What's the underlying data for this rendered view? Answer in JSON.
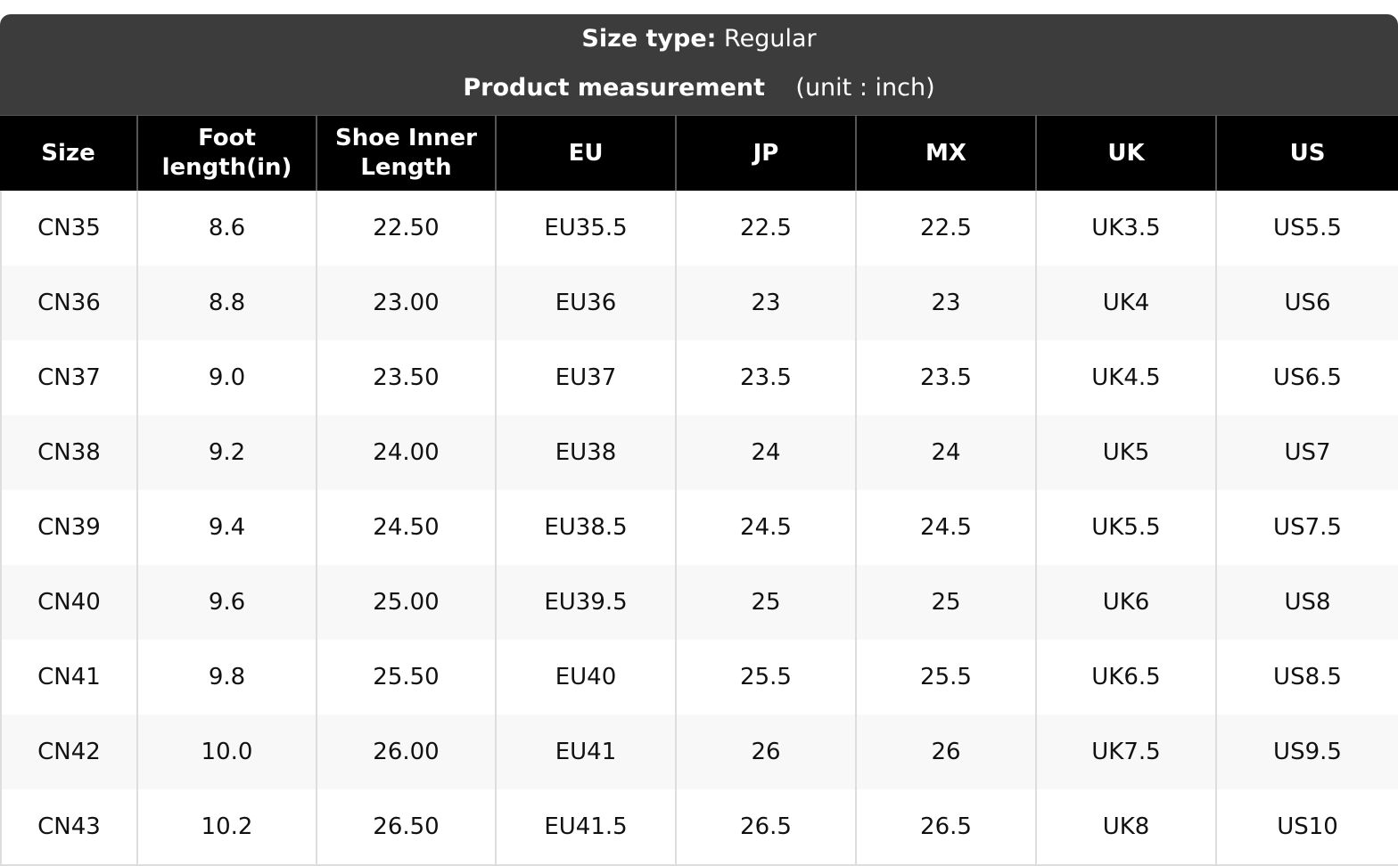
{
  "header": {
    "size_type_label": "Size type:",
    "size_type": "Regular",
    "measurement_label": "Product measurement",
    "unit": "(unit : inch)"
  },
  "table": {
    "columns": [
      "Size",
      "Foot length(in)",
      "Shoe Inner Length",
      "EU",
      "JP",
      "MX",
      "UK",
      "US"
    ],
    "rows": [
      [
        "CN35",
        "8.6",
        "22.50",
        "EU35.5",
        "22.5",
        "22.5",
        "UK3.5",
        "US5.5"
      ],
      [
        "CN36",
        "8.8",
        "23.00",
        "EU36",
        "23",
        "23",
        "UK4",
        "US6"
      ],
      [
        "CN37",
        "9.0",
        "23.50",
        "EU37",
        "23.5",
        "23.5",
        "UK4.5",
        "US6.5"
      ],
      [
        "CN38",
        "9.2",
        "24.00",
        "EU38",
        "24",
        "24",
        "UK5",
        "US7"
      ],
      [
        "CN39",
        "9.4",
        "24.50",
        "EU38.5",
        "24.5",
        "24.5",
        "UK5.5",
        "US7.5"
      ],
      [
        "CN40",
        "9.6",
        "25.00",
        "EU39.5",
        "25",
        "25",
        "UK6",
        "US8"
      ],
      [
        "CN41",
        "9.8",
        "25.50",
        "EU40",
        "25.5",
        "25.5",
        "UK6.5",
        "US8.5"
      ],
      [
        "CN42",
        "10.0",
        "26.00",
        "EU41",
        "26",
        "26",
        "UK7.5",
        "US9.5"
      ],
      [
        "CN43",
        "10.2",
        "26.50",
        "EU41.5",
        "26.5",
        "26.5",
        "UK8",
        "US10"
      ]
    ]
  }
}
